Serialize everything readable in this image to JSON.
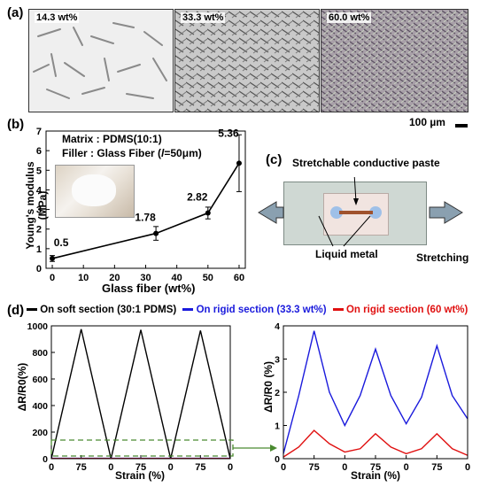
{
  "panel_a": {
    "label": "(a)",
    "images": [
      {
        "tag": "14.3 wt%"
      },
      {
        "tag": "33.3 wt%"
      },
      {
        "tag": "60.0 wt%"
      }
    ],
    "scale_bar": "100 µm"
  },
  "panel_b": {
    "label": "(b)",
    "matrix_text": "Matrix : PDMS(10:1)",
    "filler_text_prefix": "Filler : Glass Fiber (",
    "filler_text_l": "l",
    "filler_text_suffix": "=50μm)"
  },
  "panel_c": {
    "label": "(c)",
    "paste_label": "Stretchable conductive paste",
    "metal_label": "Liquid metal",
    "stretch_label": "Stretching"
  },
  "panel_d": {
    "label": "(d)",
    "legend": [
      {
        "text": "On soft section (30:1 PDMS)",
        "color": "#000000"
      },
      {
        "text": "On rigid section (33.3 wt%)",
        "color": "#1a1adc"
      },
      {
        "text": "On rigid section (60 wt%)",
        "color": "#e01010"
      }
    ]
  },
  "chart_data": [
    {
      "id": "modulus",
      "type": "line",
      "xlabel": "Glass fiber (wt%)",
      "ylabel": "Young's modulus (MPa)",
      "x": [
        0,
        33.3,
        50,
        60
      ],
      "values": [
        0.5,
        1.78,
        2.82,
        5.36
      ],
      "errors": [
        0.15,
        0.35,
        0.3,
        1.45
      ],
      "data_labels": [
        "0.5",
        "1.78",
        "2.82",
        "5.36"
      ],
      "xlim": [
        -2,
        62
      ],
      "ylim": [
        0,
        7
      ],
      "xticks": [
        0,
        10,
        20,
        30,
        40,
        50,
        60
      ],
      "yticks": [
        0,
        1,
        2,
        3,
        4,
        5,
        6,
        7
      ]
    },
    {
      "id": "soft",
      "type": "line",
      "xlabel": "Strain (%)",
      "ylabel": "ΔR/R0(%)",
      "xlim": [
        0,
        6
      ],
      "ylim": [
        0,
        1000
      ],
      "xtick_positions": [
        0,
        1,
        2,
        3,
        4,
        5,
        6
      ],
      "xtick_labels": [
        "0",
        "75",
        "0",
        "75",
        "0",
        "75",
        "0"
      ],
      "yticks": [
        0,
        200,
        400,
        600,
        800,
        1000
      ],
      "series": [
        {
          "color": "#000000",
          "x": [
            0,
            1,
            2,
            3,
            4,
            5,
            6
          ],
          "y": [
            0,
            975,
            0,
            970,
            0,
            965,
            0
          ]
        },
        {
          "color": "#1a1adc",
          "x": [
            0,
            6
          ],
          "y": [
            3,
            3
          ]
        },
        {
          "color": "#e01010",
          "x": [
            0,
            6
          ],
          "y": [
            1,
            1
          ]
        }
      ]
    },
    {
      "id": "rigid",
      "type": "line",
      "xlabel": "Strain (%)",
      "ylabel": "ΔR/R0 (%)",
      "xlim": [
        0,
        6
      ],
      "ylim": [
        0,
        4
      ],
      "xtick_positions": [
        0,
        1,
        2,
        3,
        4,
        5,
        6
      ],
      "xtick_labels": [
        "0",
        "75",
        "0",
        "75",
        "0",
        "75",
        "0"
      ],
      "yticks": [
        0,
        1,
        2,
        3,
        4
      ],
      "series": [
        {
          "color": "#1a1adc",
          "x": [
            0,
            0.5,
            1,
            1.5,
            2,
            2.5,
            3,
            3.5,
            4,
            4.5,
            5,
            5.5,
            6
          ],
          "y": [
            0.15,
            1.9,
            3.85,
            2.0,
            1.0,
            1.9,
            3.3,
            1.9,
            1.05,
            1.85,
            3.4,
            1.9,
            1.2
          ]
        },
        {
          "color": "#e01010",
          "x": [
            0,
            0.5,
            1,
            1.5,
            2,
            2.5,
            3,
            3.5,
            4,
            4.5,
            5,
            5.5,
            6
          ],
          "y": [
            0.05,
            0.35,
            0.85,
            0.45,
            0.2,
            0.3,
            0.75,
            0.35,
            0.15,
            0.3,
            0.75,
            0.3,
            0.1
          ]
        }
      ]
    }
  ]
}
